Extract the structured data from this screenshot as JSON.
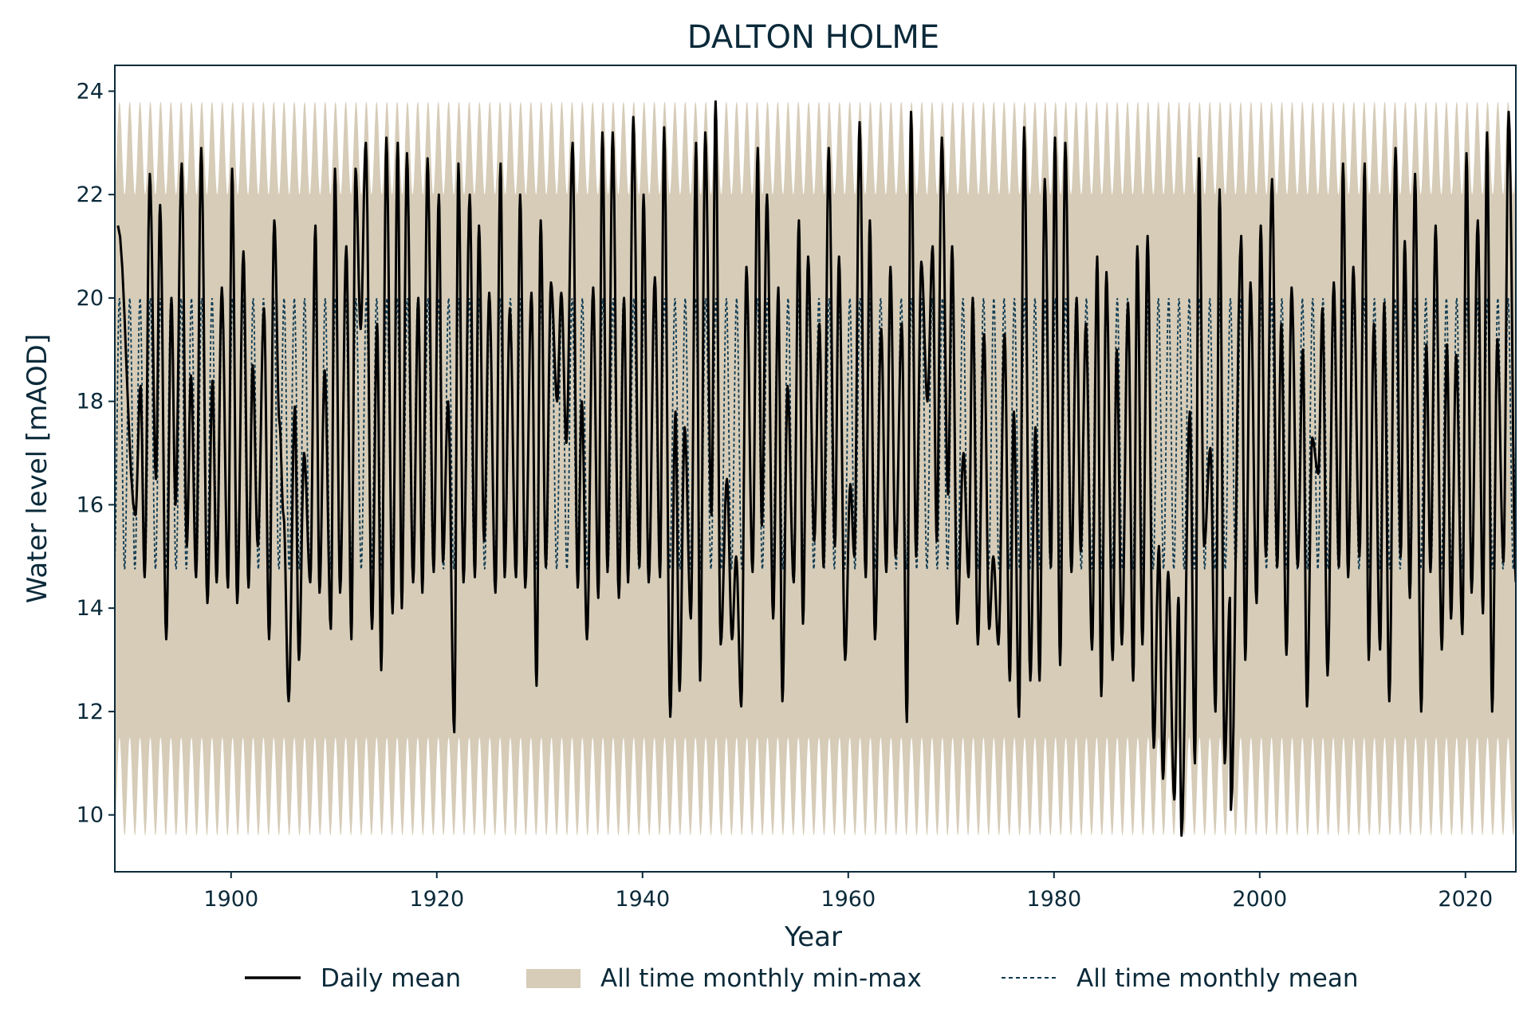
{
  "chart_data": {
    "type": "line",
    "title": "DALTON HOLME",
    "xlabel": "Year",
    "ylabel": "Water level [mAOD]",
    "xlim": [
      1888.7,
      2024.9
    ],
    "ylim": [
      8.9,
      24.5
    ],
    "xticks": [
      1900,
      1920,
      1940,
      1960,
      1980,
      2000,
      2020
    ],
    "yticks": [
      10,
      12,
      14,
      16,
      18,
      20,
      22,
      24
    ],
    "grid": false,
    "legend_position": "bottom-center",
    "colors": {
      "daily_mean": "#000000",
      "min_max_band": "#d6ccb8",
      "monthly_mean": "#0e3a52",
      "frame": "#0b2a3a"
    },
    "series": [
      {
        "name": "Daily mean",
        "style": "solid",
        "annual_peaks": [
          [
            1889.0,
            21.4
          ],
          [
            1891.2,
            18.3
          ],
          [
            1892.1,
            22.4
          ],
          [
            1893.1,
            21.8
          ],
          [
            1894.2,
            20.0
          ],
          [
            1895.2,
            22.6
          ],
          [
            1896.1,
            18.5
          ],
          [
            1897.1,
            22.9
          ],
          [
            1898.2,
            18.4
          ],
          [
            1899.1,
            20.2
          ],
          [
            1900.1,
            22.5
          ],
          [
            1901.2,
            20.9
          ],
          [
            1902.1,
            18.7
          ],
          [
            1903.2,
            19.8
          ],
          [
            1904.2,
            21.5
          ],
          [
            1905.1,
            15.8
          ],
          [
            1906.2,
            17.9
          ],
          [
            1907.1,
            17.0
          ],
          [
            1908.2,
            21.4
          ],
          [
            1909.1,
            18.6
          ],
          [
            1910.1,
            22.5
          ],
          [
            1911.2,
            21.0
          ],
          [
            1912.1,
            22.5
          ],
          [
            1913.1,
            23.0
          ],
          [
            1914.2,
            19.5
          ],
          [
            1915.1,
            23.1
          ],
          [
            1916.2,
            23.0
          ],
          [
            1917.1,
            22.8
          ],
          [
            1918.2,
            20.0
          ],
          [
            1919.1,
            22.7
          ],
          [
            1920.2,
            22.0
          ],
          [
            1921.1,
            18.0
          ],
          [
            1922.1,
            22.6
          ],
          [
            1923.2,
            22.0
          ],
          [
            1924.1,
            21.4
          ],
          [
            1925.1,
            20.1
          ],
          [
            1926.2,
            22.6
          ],
          [
            1927.1,
            19.8
          ],
          [
            1928.1,
            22.0
          ],
          [
            1929.2,
            20.1
          ],
          [
            1930.1,
            21.5
          ],
          [
            1931.1,
            20.3
          ],
          [
            1932.1,
            20.1
          ],
          [
            1933.2,
            23.0
          ],
          [
            1934.1,
            18.0
          ],
          [
            1935.2,
            20.2
          ],
          [
            1936.1,
            23.2
          ],
          [
            1937.1,
            23.2
          ],
          [
            1938.2,
            20.0
          ],
          [
            1939.1,
            23.5
          ],
          [
            1940.1,
            22.0
          ],
          [
            1941.2,
            20.4
          ],
          [
            1942.1,
            23.3
          ],
          [
            1943.2,
            17.8
          ],
          [
            1944.1,
            17.5
          ],
          [
            1945.2,
            23.0
          ],
          [
            1946.1,
            23.2
          ],
          [
            1947.1,
            23.8
          ],
          [
            1948.2,
            16.5
          ],
          [
            1949.1,
            15.0
          ],
          [
            1950.1,
            20.6
          ],
          [
            1951.2,
            22.9
          ],
          [
            1952.1,
            22.0
          ],
          [
            1953.2,
            20.2
          ],
          [
            1954.1,
            18.3
          ],
          [
            1955.2,
            21.5
          ],
          [
            1956.1,
            20.8
          ],
          [
            1957.2,
            19.5
          ],
          [
            1958.1,
            22.9
          ],
          [
            1959.1,
            20.8
          ],
          [
            1960.2,
            16.4
          ],
          [
            1961.1,
            23.4
          ],
          [
            1962.1,
            21.5
          ],
          [
            1963.2,
            19.4
          ],
          [
            1964.1,
            20.6
          ],
          [
            1965.2,
            19.5
          ],
          [
            1966.1,
            23.6
          ],
          [
            1967.1,
            20.7
          ],
          [
            1968.2,
            21.0
          ],
          [
            1969.1,
            23.1
          ],
          [
            1970.1,
            21.0
          ],
          [
            1971.2,
            17.0
          ],
          [
            1972.1,
            20.0
          ],
          [
            1973.2,
            19.3
          ],
          [
            1974.1,
            15.0
          ],
          [
            1975.2,
            19.3
          ],
          [
            1976.1,
            17.8
          ],
          [
            1977.1,
            23.3
          ],
          [
            1978.2,
            17.5
          ],
          [
            1979.1,
            22.3
          ],
          [
            1980.1,
            23.1
          ],
          [
            1981.1,
            23.0
          ],
          [
            1982.2,
            20.0
          ],
          [
            1983.1,
            19.5
          ],
          [
            1984.2,
            20.8
          ],
          [
            1985.1,
            20.5
          ],
          [
            1986.1,
            19.0
          ],
          [
            1987.2,
            19.9
          ],
          [
            1988.1,
            21.0
          ],
          [
            1989.1,
            21.2
          ],
          [
            1990.2,
            15.2
          ],
          [
            1991.1,
            14.7
          ],
          [
            1992.1,
            14.2
          ],
          [
            1993.2,
            17.8
          ],
          [
            1994.1,
            22.7
          ],
          [
            1995.2,
            17.1
          ],
          [
            1996.1,
            22.1
          ],
          [
            1997.1,
            14.2
          ],
          [
            1998.2,
            21.2
          ],
          [
            1999.1,
            20.3
          ],
          [
            2000.1,
            21.4
          ],
          [
            2001.2,
            22.3
          ],
          [
            2002.1,
            19.5
          ],
          [
            2003.1,
            20.2
          ],
          [
            2004.2,
            19.0
          ],
          [
            2005.1,
            17.3
          ],
          [
            2006.1,
            19.8
          ],
          [
            2007.2,
            20.3
          ],
          [
            2008.1,
            22.6
          ],
          [
            2009.1,
            20.6
          ],
          [
            2010.2,
            22.6
          ],
          [
            2011.1,
            19.5
          ],
          [
            2012.1,
            19.9
          ],
          [
            2013.2,
            22.9
          ],
          [
            2014.1,
            21.1
          ],
          [
            2015.1,
            22.4
          ],
          [
            2016.2,
            19.1
          ],
          [
            2017.1,
            21.4
          ],
          [
            2018.2,
            19.1
          ],
          [
            2019.1,
            18.9
          ],
          [
            2020.1,
            22.8
          ],
          [
            2021.2,
            21.5
          ],
          [
            2022.1,
            23.2
          ],
          [
            2023.1,
            19.2
          ],
          [
            2024.2,
            23.6
          ]
        ],
        "annual_troughs": [
          [
            1890.7,
            15.8
          ],
          [
            1891.6,
            14.6
          ],
          [
            1892.7,
            16.5
          ],
          [
            1893.7,
            13.4
          ],
          [
            1894.6,
            16.0
          ],
          [
            1895.7,
            15.2
          ],
          [
            1896.6,
            14.6
          ],
          [
            1897.7,
            14.1
          ],
          [
            1898.6,
            14.5
          ],
          [
            1899.7,
            14.4
          ],
          [
            1900.6,
            14.1
          ],
          [
            1901.7,
            14.4
          ],
          [
            1902.6,
            15.2
          ],
          [
            1903.7,
            13.4
          ],
          [
            1904.7,
            17.6
          ],
          [
            1905.6,
            12.2
          ],
          [
            1906.6,
            13.0
          ],
          [
            1907.7,
            14.5
          ],
          [
            1908.6,
            14.3
          ],
          [
            1909.7,
            13.6
          ],
          [
            1910.6,
            14.3
          ],
          [
            1911.7,
            13.4
          ],
          [
            1912.6,
            19.4
          ],
          [
            1913.7,
            13.6
          ],
          [
            1914.6,
            12.8
          ],
          [
            1915.7,
            13.9
          ],
          [
            1916.6,
            14.0
          ],
          [
            1917.7,
            14.5
          ],
          [
            1918.6,
            14.3
          ],
          [
            1919.7,
            14.7
          ],
          [
            1920.6,
            14.9
          ],
          [
            1921.7,
            11.6
          ],
          [
            1922.6,
            14.5
          ],
          [
            1923.7,
            14.6
          ],
          [
            1924.6,
            15.3
          ],
          [
            1925.7,
            14.3
          ],
          [
            1926.6,
            14.6
          ],
          [
            1927.7,
            14.6
          ],
          [
            1928.6,
            14.4
          ],
          [
            1929.7,
            12.5
          ],
          [
            1930.6,
            14.8
          ],
          [
            1931.7,
            18.0
          ],
          [
            1932.6,
            17.2
          ],
          [
            1933.7,
            14.4
          ],
          [
            1934.6,
            13.4
          ],
          [
            1935.7,
            14.2
          ],
          [
            1936.6,
            14.7
          ],
          [
            1937.7,
            14.2
          ],
          [
            1938.6,
            14.5
          ],
          [
            1939.7,
            14.8
          ],
          [
            1940.6,
            14.5
          ],
          [
            1941.7,
            14.6
          ],
          [
            1942.7,
            11.9
          ],
          [
            1943.6,
            12.4
          ],
          [
            1944.7,
            13.8
          ],
          [
            1945.6,
            12.6
          ],
          [
            1946.7,
            15.8
          ],
          [
            1947.6,
            13.3
          ],
          [
            1948.7,
            13.4
          ],
          [
            1949.6,
            12.1
          ],
          [
            1950.7,
            14.7
          ],
          [
            1951.6,
            15.6
          ],
          [
            1952.7,
            13.8
          ],
          [
            1953.6,
            12.2
          ],
          [
            1954.7,
            14.5
          ],
          [
            1955.6,
            13.7
          ],
          [
            1956.7,
            15.3
          ],
          [
            1957.6,
            14.8
          ],
          [
            1958.7,
            15.2
          ],
          [
            1959.7,
            13.0
          ],
          [
            1960.6,
            15.0
          ],
          [
            1961.7,
            14.6
          ],
          [
            1962.6,
            13.4
          ],
          [
            1963.7,
            14.7
          ],
          [
            1964.6,
            15.0
          ],
          [
            1965.7,
            11.8
          ],
          [
            1966.6,
            15.0
          ],
          [
            1967.7,
            18.0
          ],
          [
            1968.6,
            15.3
          ],
          [
            1969.7,
            16.2
          ],
          [
            1970.6,
            13.7
          ],
          [
            1971.7,
            14.6
          ],
          [
            1972.6,
            13.3
          ],
          [
            1973.7,
            13.6
          ],
          [
            1974.6,
            13.3
          ],
          [
            1975.7,
            12.6
          ],
          [
            1976.6,
            11.9
          ],
          [
            1977.7,
            12.6
          ],
          [
            1978.6,
            12.6
          ],
          [
            1979.7,
            14.8
          ],
          [
            1980.6,
            12.9
          ],
          [
            1981.7,
            14.7
          ],
          [
            1982.6,
            15.1
          ],
          [
            1983.7,
            13.2
          ],
          [
            1984.6,
            12.3
          ],
          [
            1985.7,
            13.0
          ],
          [
            1986.6,
            13.3
          ],
          [
            1987.7,
            12.6
          ],
          [
            1988.6,
            13.3
          ],
          [
            1989.7,
            11.3
          ],
          [
            1990.6,
            10.7
          ],
          [
            1991.7,
            10.3
          ],
          [
            1992.4,
            9.6
          ],
          [
            1993.7,
            11.0
          ],
          [
            1994.6,
            15.2
          ],
          [
            1995.7,
            12.0
          ],
          [
            1996.6,
            11.0
          ],
          [
            1997.2,
            10.1
          ],
          [
            1998.6,
            13.0
          ],
          [
            1999.7,
            14.1
          ],
          [
            2000.6,
            15.0
          ],
          [
            2001.7,
            14.8
          ],
          [
            2002.6,
            13.1
          ],
          [
            2003.7,
            14.8
          ],
          [
            2004.6,
            12.1
          ],
          [
            2005.7,
            16.6
          ],
          [
            2006.6,
            12.7
          ],
          [
            2007.7,
            14.8
          ],
          [
            2008.6,
            14.6
          ],
          [
            2009.7,
            15.0
          ],
          [
            2010.6,
            13.0
          ],
          [
            2011.7,
            13.2
          ],
          [
            2012.6,
            12.2
          ],
          [
            2013.7,
            15.0
          ],
          [
            2014.6,
            14.2
          ],
          [
            2015.7,
            12.0
          ],
          [
            2016.6,
            14.7
          ],
          [
            2017.7,
            13.2
          ],
          [
            2018.6,
            13.8
          ],
          [
            2019.7,
            13.5
          ],
          [
            2020.6,
            14.3
          ],
          [
            2021.7,
            13.9
          ],
          [
            2022.6,
            12.0
          ],
          [
            2023.7,
            14.9
          ],
          [
            2024.9,
            14.5
          ]
        ]
      },
      {
        "name": "All time monthly min-max",
        "style": "band",
        "monthly_max_peak": 23.8,
        "monthly_max_trough": 22.0,
        "monthly_min_peak": 11.5,
        "monthly_min_trough": 9.6
      },
      {
        "name": "All time monthly mean",
        "style": "dashed",
        "seasonal_max": 20.0,
        "seasonal_min": 14.75
      }
    ]
  }
}
